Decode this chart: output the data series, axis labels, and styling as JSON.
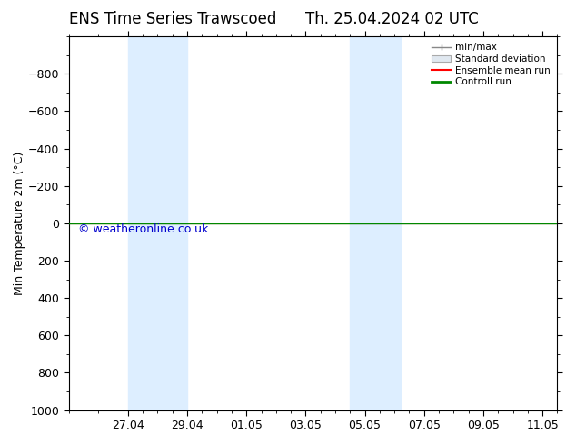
{
  "title_left": "ENS Time Series Trawscoed",
  "title_right": "Th. 25.04.2024 02 UTC",
  "ylabel": "Min Temperature 2m (°C)",
  "ylim_bottom": -1000,
  "ylim_top": 1000,
  "yticks": [
    -800,
    -600,
    -400,
    -200,
    0,
    200,
    400,
    600,
    800,
    1000
  ],
  "xtick_labels": [
    "27.04",
    "29.04",
    "01.05",
    "03.05",
    "05.05",
    "07.05",
    "09.05",
    "11.05"
  ],
  "xtick_positions": [
    2,
    4,
    6,
    8,
    10,
    12,
    14,
    16
  ],
  "xlim": [
    0,
    16.5
  ],
  "blue_bands": [
    [
      1,
      3
    ],
    [
      3,
      5
    ],
    [
      9,
      10
    ],
    [
      10,
      11
    ]
  ],
  "blue_band_color": "#ddeeff",
  "control_run_y": 0,
  "ensemble_mean_y": 0,
  "control_run_color": "#008800",
  "ensemble_mean_color": "#ff0000",
  "watermark": "© weatheronline.co.uk",
  "watermark_color": "#0000cc",
  "background_color": "#ffffff",
  "plot_bg_color": "#ffffff",
  "legend_items": [
    "min/max",
    "Standard deviation",
    "Ensemble mean run",
    "Controll run"
  ],
  "legend_colors_line": [
    "#888888",
    "#cccccc",
    "#ff0000",
    "#008800"
  ],
  "title_fontsize": 12,
  "axis_label_fontsize": 9,
  "tick_fontsize": 9
}
